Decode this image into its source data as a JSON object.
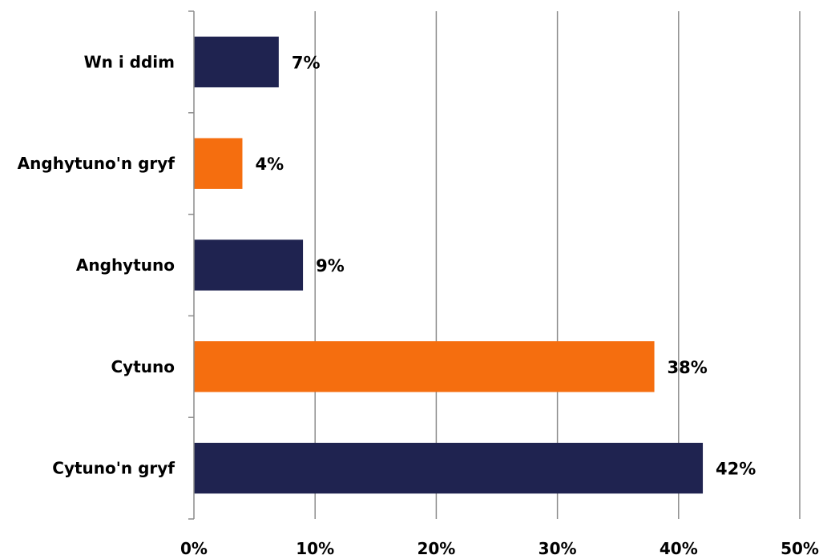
{
  "chart_data": {
    "type": "bar",
    "orientation": "horizontal",
    "title": "",
    "xlabel": "",
    "ylabel": "",
    "categories": [
      "Cytuno'n gryf",
      "Cytuno",
      "Anghytuno",
      "Anghytuno'n gryf",
      "Wn i ddim"
    ],
    "values": [
      42,
      38,
      9,
      4,
      7
    ],
    "data_labels": [
      "42%",
      "38%",
      "9%",
      "4%",
      "7%"
    ],
    "bar_colors": [
      "#1f2350",
      "#f56e0f",
      "#1f2350",
      "#f56e0f",
      "#1f2350"
    ],
    "xlim": [
      0,
      50
    ],
    "x_ticks": [
      0,
      10,
      20,
      30,
      40,
      50
    ],
    "x_tick_labels": [
      "0%",
      "10%",
      "20%",
      "30%",
      "40%",
      "50%"
    ],
    "grid": "vertical",
    "legend": "none"
  }
}
